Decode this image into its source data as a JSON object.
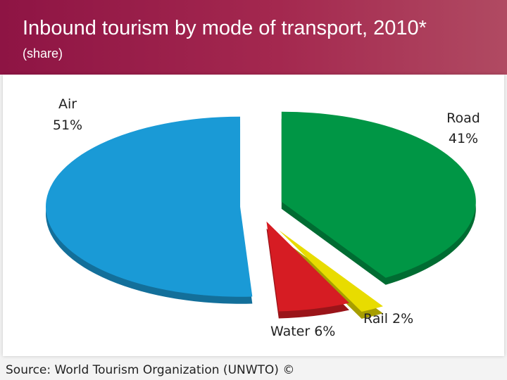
{
  "header": {
    "title": "Inbound tourism by mode of transport, 2010*",
    "subtitle": "(share)"
  },
  "footer": {
    "source": "Source: World Tourism Organization (UNWTO) ©"
  },
  "colors": {
    "header_bg": "#9b1b4a",
    "air": "#1a9ad6",
    "road": "#009645",
    "rail": "#e8dc00",
    "water": "#d61c23"
  },
  "chart_data": {
    "type": "pie",
    "title": "Inbound tourism by mode of transport, 2010*",
    "subtitle": "(share)",
    "exploded": true,
    "style": "3d",
    "slices": [
      {
        "label": "Road",
        "value": 41,
        "value_label": "41%",
        "color": "#009645"
      },
      {
        "label": "Rail",
        "value": 2,
        "value_label": "Rail 2%",
        "color": "#e8dc00"
      },
      {
        "label": "Water",
        "value": 6,
        "value_label": "Water 6%",
        "color": "#d61c23"
      },
      {
        "label": "Air",
        "value": 51,
        "value_label": "51%",
        "color": "#1a9ad6"
      }
    ]
  }
}
